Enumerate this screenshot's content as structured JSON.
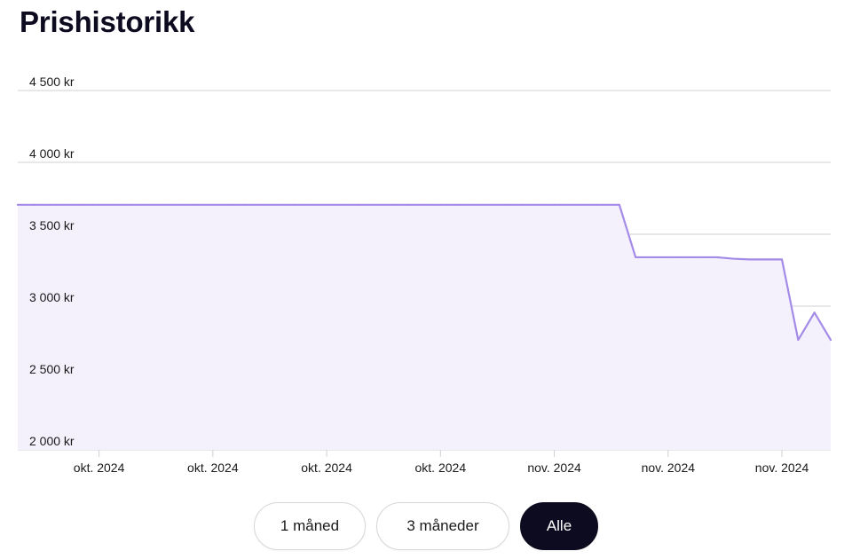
{
  "page": {
    "title": "Prishistorikk"
  },
  "range_buttons": [
    {
      "label": "1 måned",
      "selected": false
    },
    {
      "label": "3 måneder",
      "selected": false
    },
    {
      "label": "Alle",
      "selected": true
    }
  ],
  "colors": {
    "line": "#a48be8",
    "fill": "#f4f1fd",
    "grid": "#d0d0d6",
    "active_button": "#0d0b1f"
  },
  "chart_data": {
    "type": "area",
    "title": "Prishistorikk",
    "xlabel": "",
    "ylabel": "",
    "ylim": [
      2000,
      4500
    ],
    "yticks": [
      2000,
      2500,
      3000,
      3500,
      4000,
      4500
    ],
    "ytick_labels": [
      "2 000 kr",
      "2 500 kr",
      "3 000 kr",
      "3 500 kr",
      "4 000 kr",
      "4 500 kr"
    ],
    "xticks": [
      {
        "index": 5,
        "label": "okt. 2024"
      },
      {
        "index": 12,
        "label": "okt. 2024"
      },
      {
        "index": 19,
        "label": "okt. 2024"
      },
      {
        "index": 26,
        "label": "okt. 2024"
      },
      {
        "index": 33,
        "label": "nov. 2024"
      },
      {
        "index": 40,
        "label": "nov. 2024"
      },
      {
        "index": 47,
        "label": "nov. 2024"
      }
    ],
    "grid": true,
    "legend": "none",
    "series": [
      {
        "values": [
          3705,
          3705,
          3705,
          3705,
          3705,
          3705,
          3705,
          3705,
          3705,
          3705,
          3705,
          3705,
          3705,
          3705,
          3705,
          3705,
          3705,
          3705,
          3705,
          3705,
          3705,
          3705,
          3705,
          3705,
          3705,
          3705,
          3705,
          3705,
          3705,
          3705,
          3705,
          3705,
          3705,
          3705,
          3705,
          3705,
          3705,
          3705,
          3340,
          3340,
          3340,
          3340,
          3340,
          3340,
          3330,
          3325,
          3325,
          3325,
          2765,
          2955,
          2765
        ]
      }
    ]
  }
}
